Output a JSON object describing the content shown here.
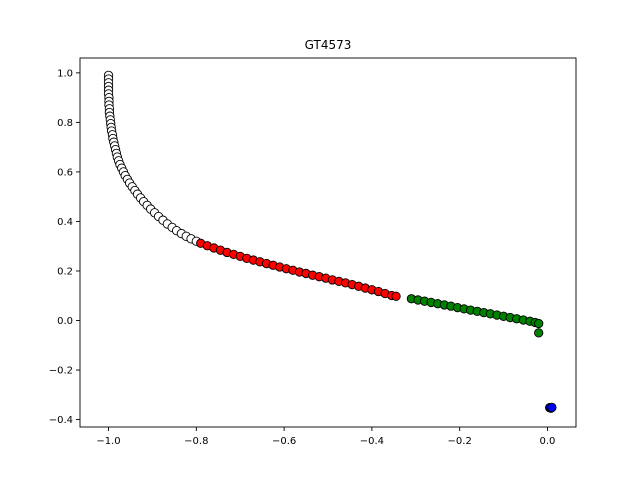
{
  "chart_data": {
    "type": "scatter",
    "title": "GT4573",
    "xlabel": "",
    "ylabel": "",
    "xlim": [
      -1.065,
      0.065
    ],
    "ylim": [
      -0.43,
      1.06
    ],
    "x_ticks": [
      -1.0,
      -0.8,
      -0.6,
      -0.4,
      -0.2,
      0.0
    ],
    "x_tick_labels": [
      "−1.0",
      "−0.8",
      "−0.6",
      "−0.4",
      "−0.2",
      "0.0"
    ],
    "y_ticks": [
      -0.4,
      -0.2,
      0.0,
      0.2,
      0.4,
      0.6,
      0.8,
      1.0
    ],
    "y_tick_labels": [
      "−0.4",
      "−0.2",
      "0.0",
      "0.2",
      "0.4",
      "0.6",
      "0.8",
      "1.0"
    ],
    "grid": false,
    "series": [
      {
        "color": "#ffffff",
        "edge_color": "#000000",
        "points": [
          [
            -1.0,
            0.99
          ],
          [
            -1.0,
            0.975
          ],
          [
            -1.0,
            0.96
          ],
          [
            -1.0,
            0.945
          ],
          [
            -1.0,
            0.93
          ],
          [
            -1.0,
            0.915
          ],
          [
            -0.999,
            0.9
          ],
          [
            -0.999,
            0.885
          ],
          [
            -0.999,
            0.87
          ],
          [
            -0.998,
            0.855
          ],
          [
            -0.998,
            0.84
          ],
          [
            -0.997,
            0.825
          ],
          [
            -0.996,
            0.81
          ],
          [
            -0.995,
            0.795
          ],
          [
            -0.994,
            0.78
          ],
          [
            -0.993,
            0.765
          ],
          [
            -0.991,
            0.75
          ],
          [
            -0.99,
            0.735
          ],
          [
            -0.988,
            0.72
          ],
          [
            -0.986,
            0.705
          ],
          [
            -0.984,
            0.69
          ],
          [
            -0.982,
            0.675
          ],
          [
            -0.98,
            0.66
          ],
          [
            -0.977,
            0.645
          ],
          [
            -0.974,
            0.63
          ],
          [
            -0.97,
            0.615
          ],
          [
            -0.966,
            0.6
          ],
          [
            -0.962,
            0.585
          ],
          [
            -0.957,
            0.57
          ],
          [
            -0.952,
            0.555
          ],
          [
            -0.946,
            0.54
          ],
          [
            -0.94,
            0.525
          ],
          [
            -0.934,
            0.51
          ],
          [
            -0.927,
            0.495
          ],
          [
            -0.92,
            0.48
          ],
          [
            -0.912,
            0.465
          ],
          [
            -0.904,
            0.45
          ],
          [
            -0.895,
            0.435
          ],
          [
            -0.886,
            0.42
          ],
          [
            -0.876,
            0.405
          ],
          [
            -0.866,
            0.39
          ],
          [
            -0.855,
            0.376
          ],
          [
            -0.845,
            0.363
          ],
          [
            -0.834,
            0.351
          ],
          [
            -0.823,
            0.34
          ],
          [
            -0.812,
            0.33
          ],
          [
            -0.8,
            0.32
          ]
        ]
      },
      {
        "color": "#ff0000",
        "edge_color": "#000000",
        "points": [
          [
            -0.79,
            0.312
          ],
          [
            -0.775,
            0.302
          ],
          [
            -0.76,
            0.293
          ],
          [
            -0.745,
            0.284
          ],
          [
            -0.73,
            0.275
          ],
          [
            -0.715,
            0.267
          ],
          [
            -0.7,
            0.259
          ],
          [
            -0.685,
            0.251
          ],
          [
            -0.67,
            0.244
          ],
          [
            -0.655,
            0.237
          ],
          [
            -0.64,
            0.23
          ],
          [
            -0.625,
            0.223
          ],
          [
            -0.61,
            0.216
          ],
          [
            -0.595,
            0.209
          ],
          [
            -0.58,
            0.203
          ],
          [
            -0.565,
            0.196
          ],
          [
            -0.55,
            0.19
          ],
          [
            -0.535,
            0.183
          ],
          [
            -0.52,
            0.177
          ],
          [
            -0.505,
            0.171
          ],
          [
            -0.49,
            0.164
          ],
          [
            -0.475,
            0.158
          ],
          [
            -0.46,
            0.152
          ],
          [
            -0.445,
            0.145
          ],
          [
            -0.43,
            0.138
          ],
          [
            -0.415,
            0.131
          ],
          [
            -0.4,
            0.124
          ],
          [
            -0.385,
            0.117
          ],
          [
            -0.37,
            0.109
          ],
          [
            -0.355,
            0.101
          ],
          [
            -0.345,
            0.098
          ]
        ]
      },
      {
        "color": "#008000",
        "edge_color": "#000000",
        "points": [
          [
            -0.31,
            0.088
          ],
          [
            -0.295,
            0.083
          ],
          [
            -0.28,
            0.078
          ],
          [
            -0.265,
            0.073
          ],
          [
            -0.25,
            0.068
          ],
          [
            -0.235,
            0.063
          ],
          [
            -0.22,
            0.058
          ],
          [
            -0.205,
            0.052
          ],
          [
            -0.19,
            0.047
          ],
          [
            -0.175,
            0.042
          ],
          [
            -0.16,
            0.037
          ],
          [
            -0.145,
            0.032
          ],
          [
            -0.13,
            0.027
          ],
          [
            -0.115,
            0.022
          ],
          [
            -0.1,
            0.017
          ],
          [
            -0.085,
            0.012
          ],
          [
            -0.07,
            0.007
          ],
          [
            -0.055,
            0.002
          ],
          [
            -0.04,
            -0.003
          ],
          [
            -0.028,
            -0.008
          ],
          [
            -0.02,
            -0.012
          ],
          [
            -0.02,
            -0.05
          ]
        ]
      },
      {
        "color": "#0000ff",
        "edge_color": "#000000",
        "points": [
          [
            0.005,
            -0.352
          ],
          [
            0.008,
            -0.354
          ],
          [
            0.01,
            -0.351
          ]
        ]
      }
    ]
  }
}
